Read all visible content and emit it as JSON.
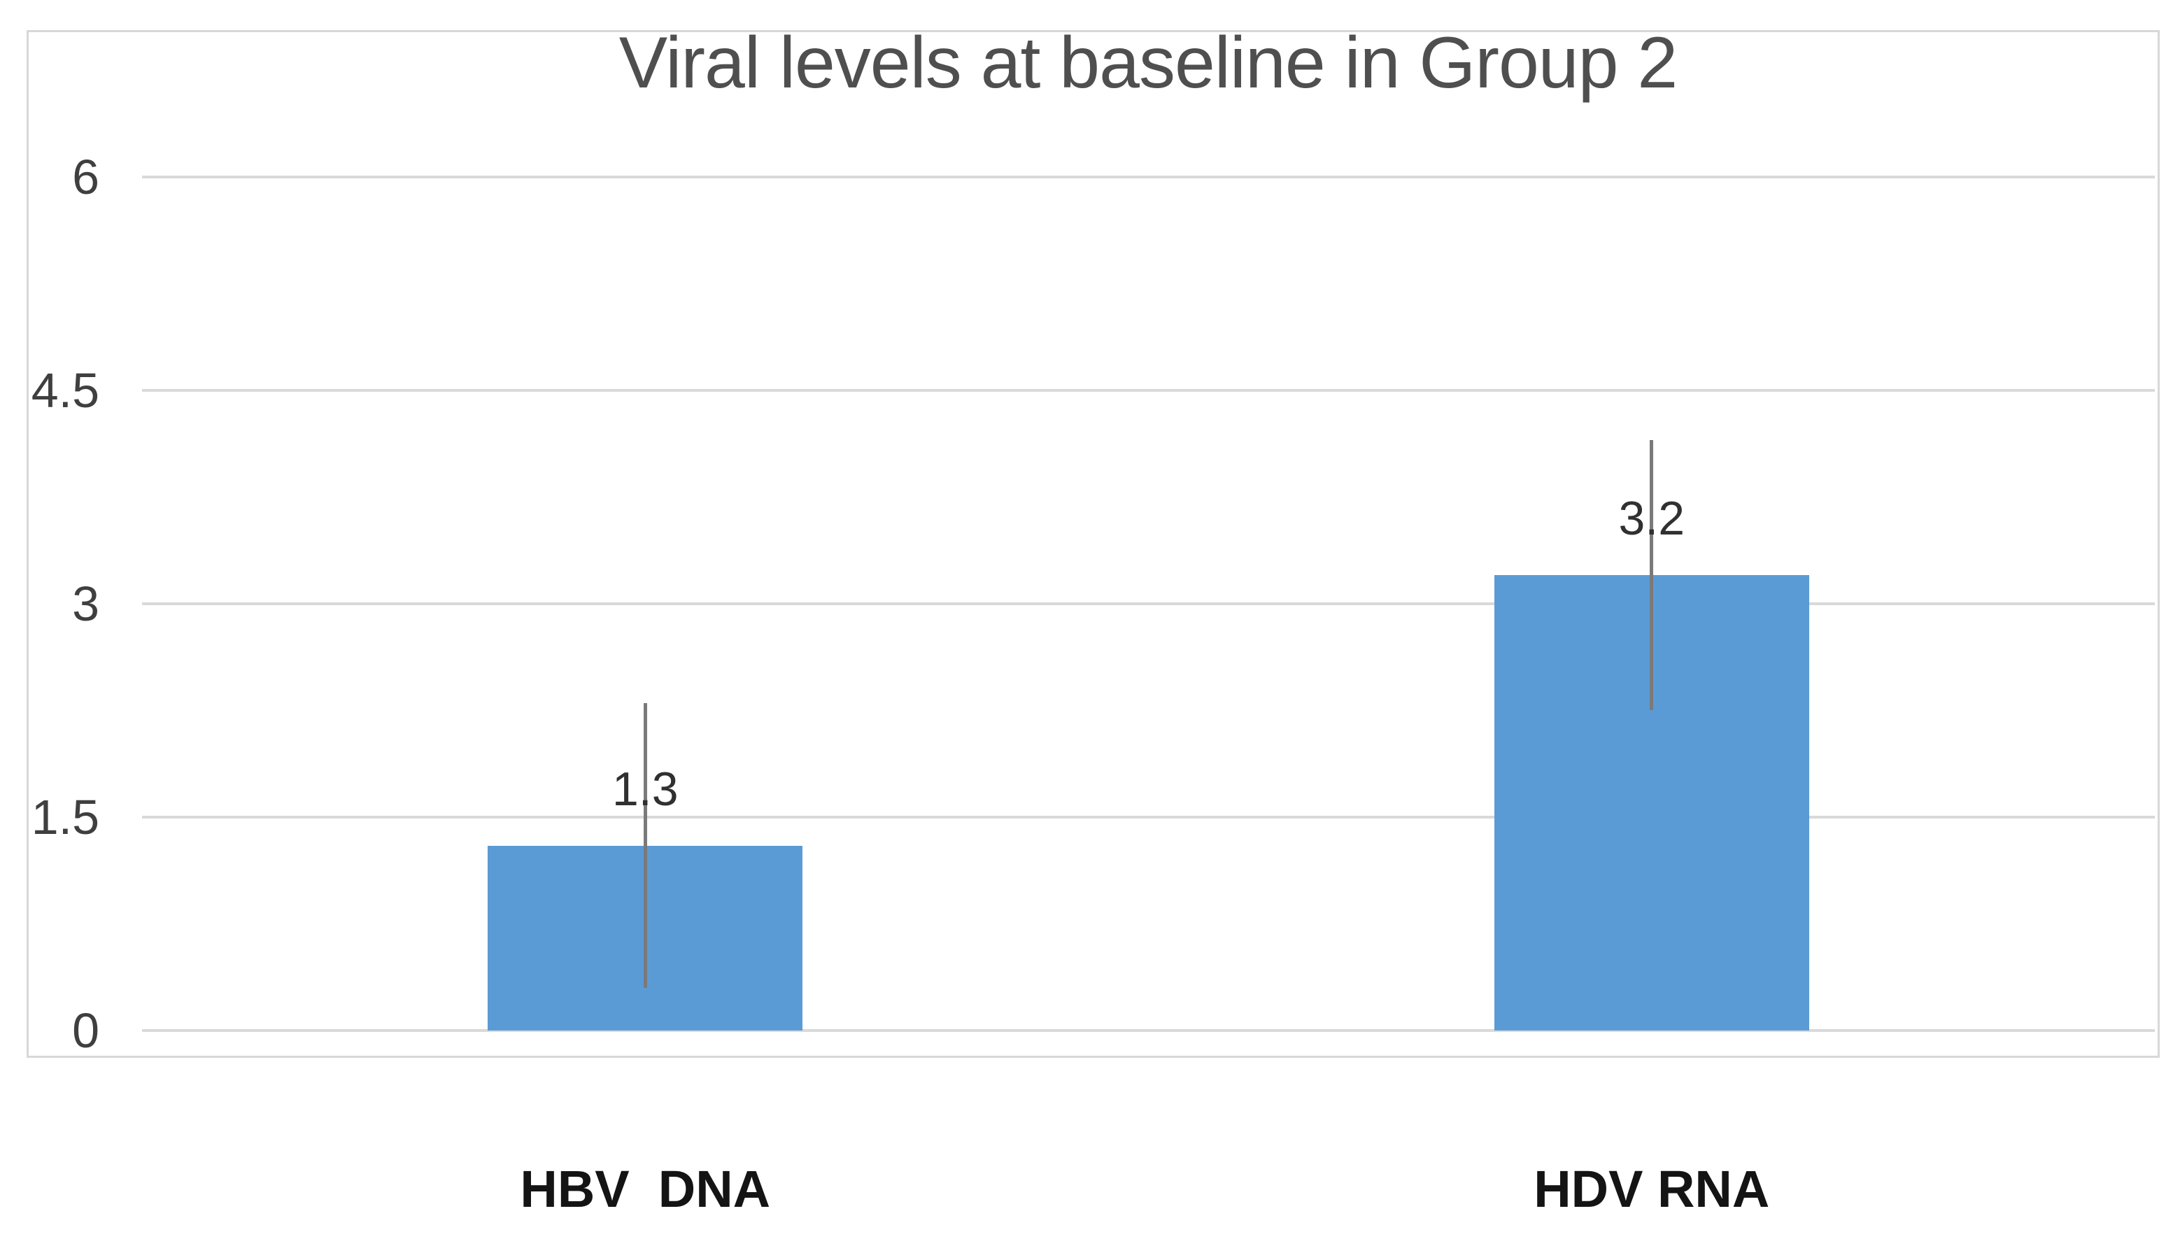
{
  "chart_data": {
    "type": "bar",
    "title": "Viral levels at baseline in Group 2",
    "categories": [
      "HBV  DNA",
      "HDV RNA"
    ],
    "values": [
      1.3,
      3.2
    ],
    "data_labels": [
      "1.3",
      "3.2"
    ],
    "error_bars": [
      1.0,
      0.95
    ],
    "yticks": [
      "6",
      "4.5",
      "3",
      "1.5",
      "0"
    ],
    "ytick_values": [
      6,
      4.5,
      3,
      1.5,
      0
    ],
    "ylim": [
      0,
      6
    ],
    "xlabel": "",
    "ylabel": "",
    "grid": true,
    "legend_position": "none",
    "colors": {
      "bar": "#5B9BD5",
      "gridline": "#D9D9D9",
      "frame_border": "#D8D8D8",
      "error_bar": "#7A7A7A",
      "title_text": "#4F4F4F",
      "ytick_text": "#3F3F3F",
      "data_label_text": "#303030",
      "category_text": "#141414",
      "background": "#FFFFFF"
    }
  }
}
